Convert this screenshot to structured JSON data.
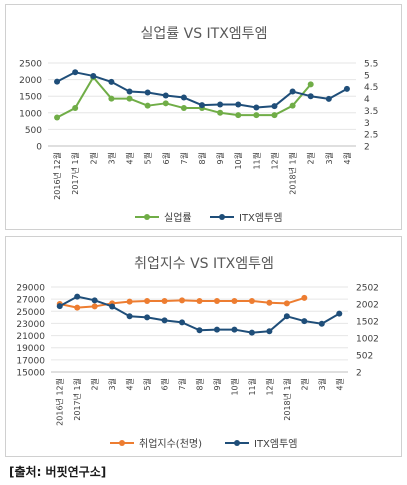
{
  "source_note": "[출처: 버핏연구소]",
  "chart_data": [
    {
      "type": "line",
      "title": "실업률 VS ITX엠투엠",
      "categories": [
        "2016년 12월",
        "2017년 1월",
        "2월",
        "3월",
        "4월",
        "5월",
        "6월",
        "7월",
        "8월",
        "9월",
        "10월",
        "11월",
        "12월",
        "2018년 1월",
        "2월",
        "3월",
        "4월"
      ],
      "series": [
        {
          "name": "실업률",
          "axis": "right",
          "color": "#70AD47",
          "values": [
            3.2,
            3.6,
            4.9,
            4.0,
            4.0,
            3.7,
            3.8,
            3.6,
            3.6,
            3.4,
            3.3,
            3.3,
            3.3,
            3.7,
            4.6,
            null,
            null
          ]
        },
        {
          "name": "ITX엠투엠",
          "axis": "left",
          "color": "#1F4E79",
          "values": [
            1940,
            2220,
            2110,
            1930,
            1640,
            1610,
            1520,
            1460,
            1230,
            1250,
            1250,
            1160,
            1200,
            1640,
            1500,
            1420,
            1720
          ]
        }
      ],
      "left_axis": {
        "min": 0,
        "max": 2500,
        "ticks": [
          "0",
          "500",
          "1000",
          "1500",
          "2000",
          "2500"
        ]
      },
      "right_axis": {
        "min": 2,
        "max": 5.5,
        "ticks": [
          "2",
          "2.5",
          "3",
          "3.5",
          "4",
          "4.5",
          "5",
          "5.5"
        ]
      }
    },
    {
      "type": "line",
      "title": "취업지수 VS ITX엠투엠",
      "categories": [
        "2016년 12월",
        "2017년 1월",
        "2월",
        "3월",
        "4월",
        "5월",
        "6월",
        "7월",
        "8월",
        "9월",
        "10월",
        "11월",
        "12월",
        "2018년 1월",
        "2월",
        "3월",
        "4월"
      ],
      "series": [
        {
          "name": "취업지수(천명)",
          "axis": "left",
          "color": "#ED7D31",
          "values": [
            26200,
            25600,
            25800,
            26300,
            26600,
            26700,
            26700,
            26800,
            26700,
            26700,
            26700,
            26700,
            26400,
            26300,
            27200,
            null,
            null
          ]
        },
        {
          "name": "ITX엠투엠",
          "axis": "right",
          "color": "#1F4E79",
          "values": [
            1940,
            2220,
            2110,
            1930,
            1640,
            1610,
            1520,
            1460,
            1230,
            1250,
            1250,
            1160,
            1200,
            1640,
            1500,
            1420,
            1720
          ]
        }
      ],
      "left_axis": {
        "min": 15000,
        "max": 29000,
        "ticks": [
          "15000",
          "17000",
          "19000",
          "21000",
          "23000",
          "25000",
          "27000",
          "29000"
        ]
      },
      "right_axis": {
        "min": 2,
        "max": 2502,
        "ticks": [
          "2",
          "502",
          "1002",
          "1502",
          "2002",
          "2502"
        ]
      }
    }
  ]
}
